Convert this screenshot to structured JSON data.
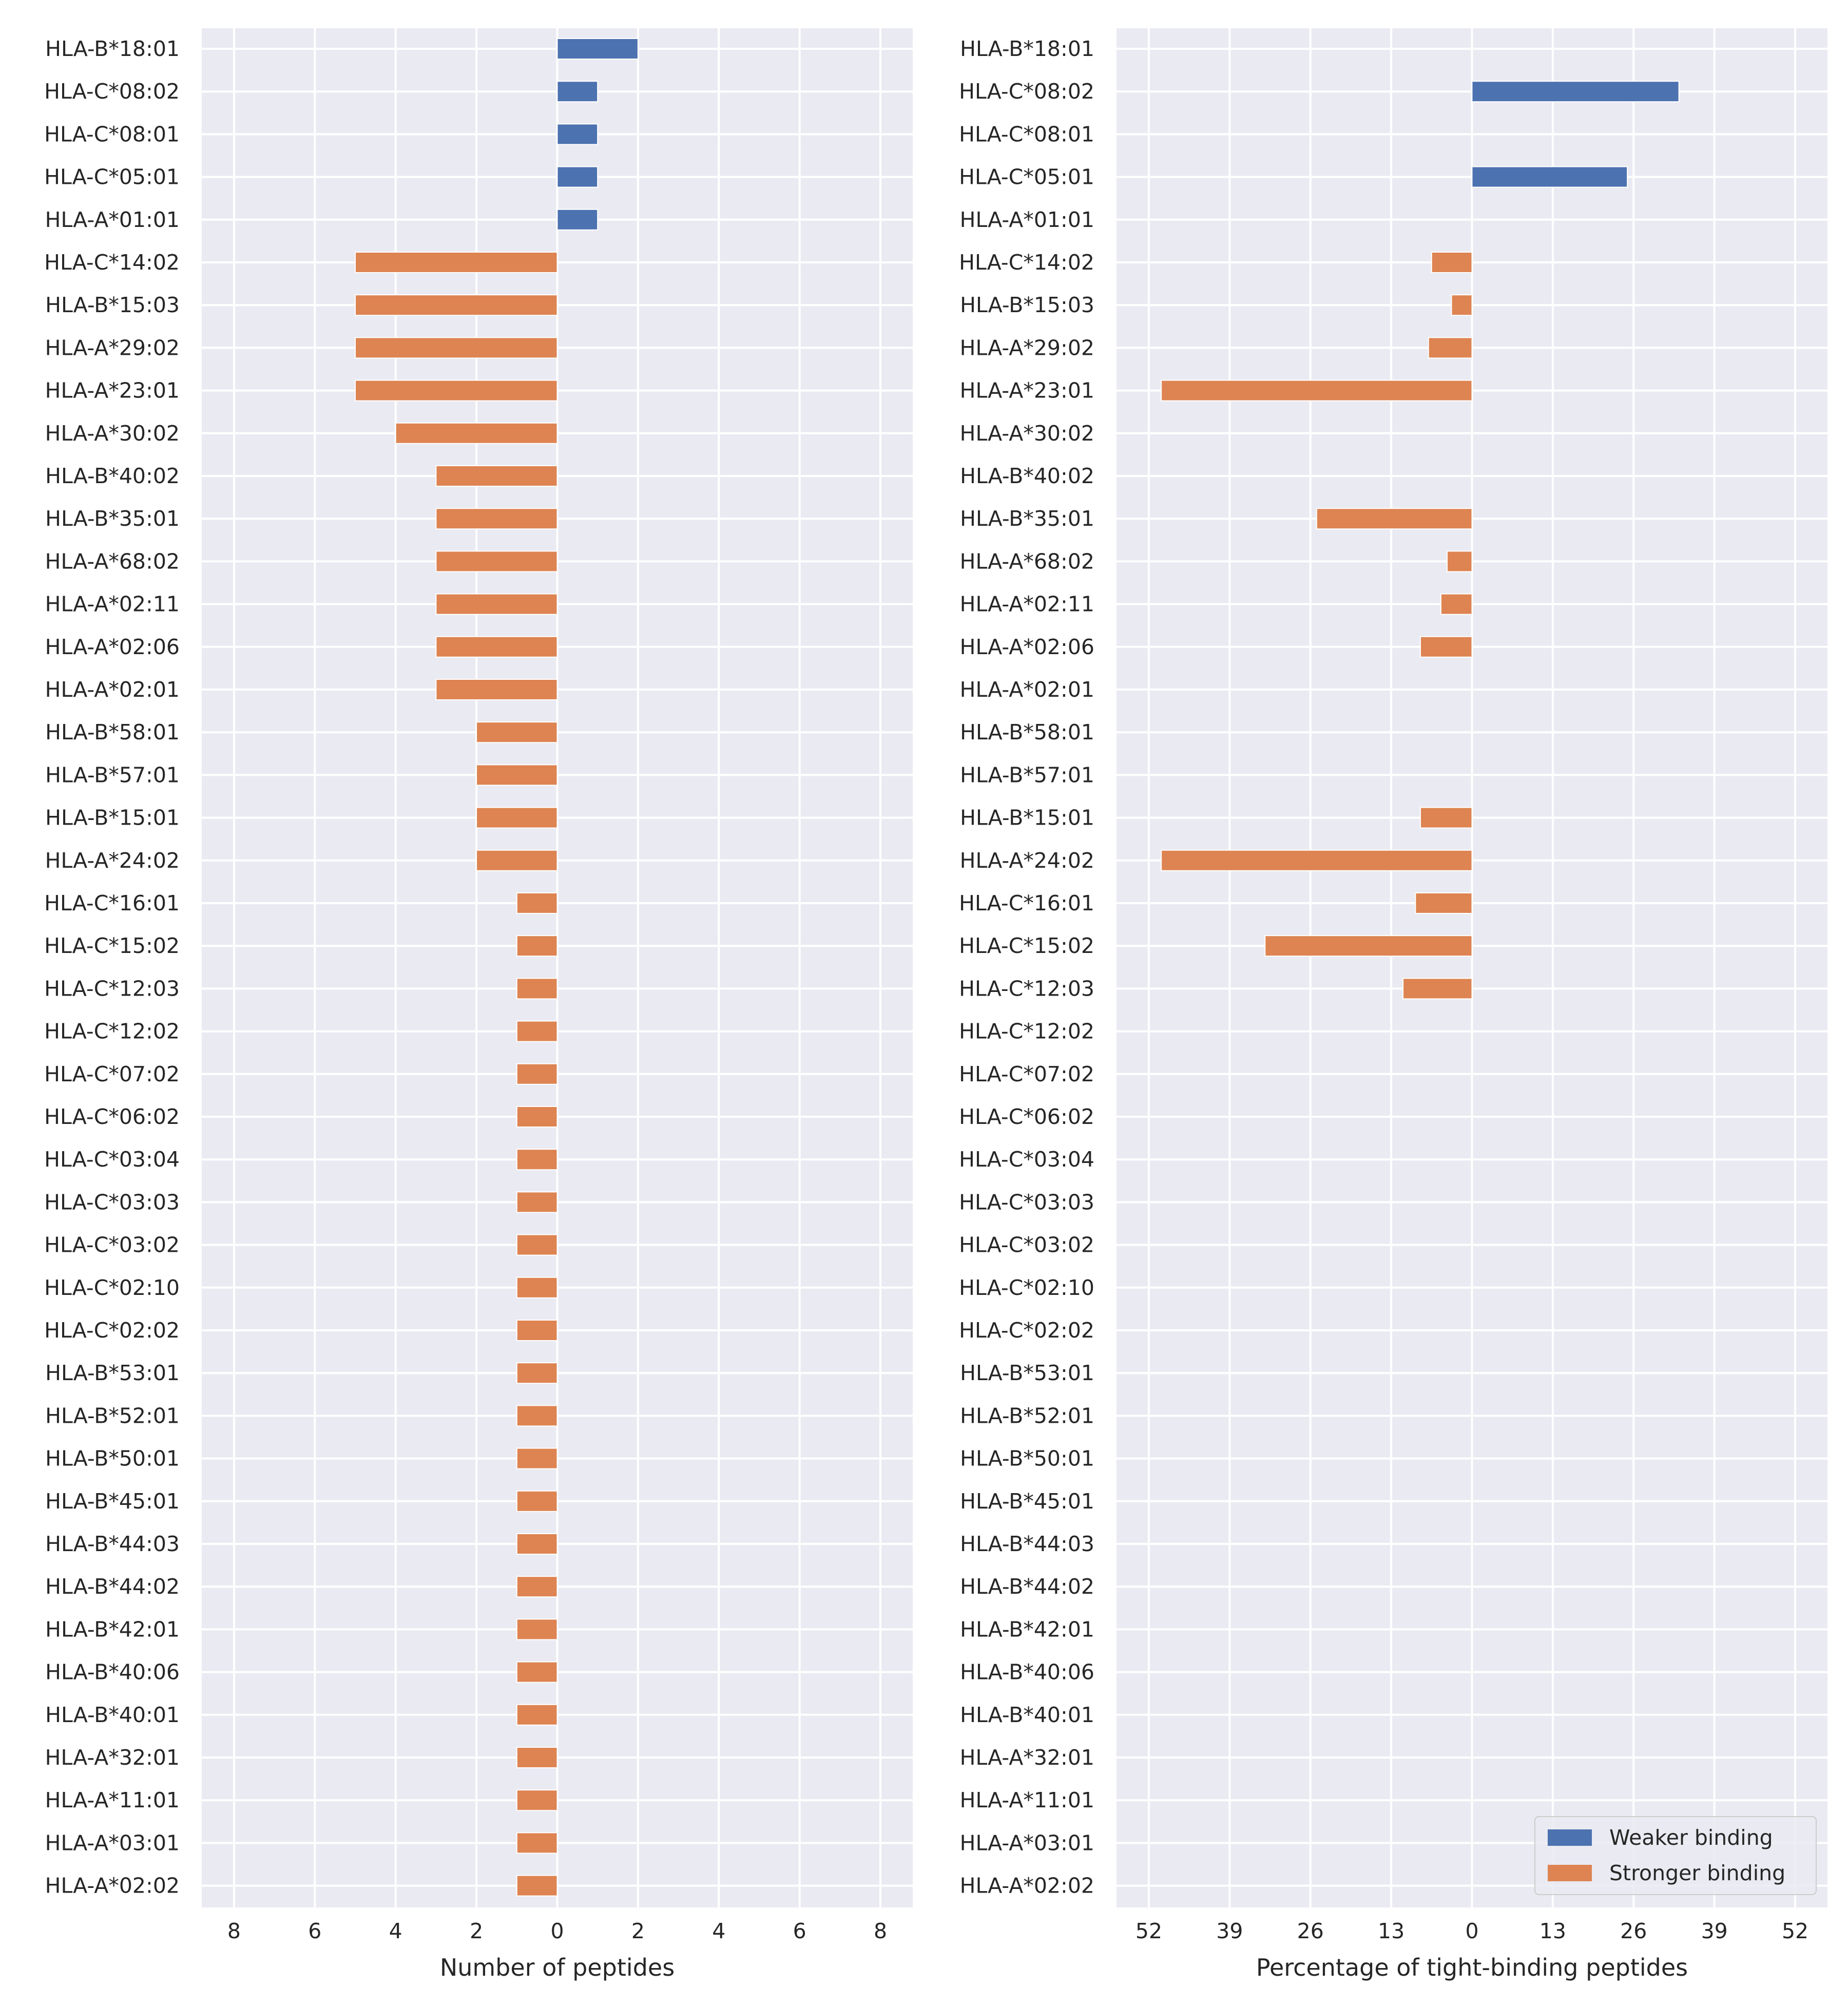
{
  "chart_data": [
    {
      "type": "bar",
      "orientation": "horizontal",
      "categories": [
        "HLA-B*18:01",
        "HLA-C*08:02",
        "HLA-C*08:01",
        "HLA-C*05:01",
        "HLA-A*01:01",
        "HLA-C*14:02",
        "HLA-B*15:03",
        "HLA-A*29:02",
        "HLA-A*23:01",
        "HLA-A*30:02",
        "HLA-B*40:02",
        "HLA-B*35:01",
        "HLA-A*68:02",
        "HLA-A*02:11",
        "HLA-A*02:06",
        "HLA-A*02:01",
        "HLA-B*58:01",
        "HLA-B*57:01",
        "HLA-B*15:01",
        "HLA-A*24:02",
        "HLA-C*16:01",
        "HLA-C*15:02",
        "HLA-C*12:03",
        "HLA-C*12:02",
        "HLA-C*07:02",
        "HLA-C*06:02",
        "HLA-C*03:04",
        "HLA-C*03:03",
        "HLA-C*03:02",
        "HLA-C*02:10",
        "HLA-C*02:02",
        "HLA-B*53:01",
        "HLA-B*52:01",
        "HLA-B*50:01",
        "HLA-B*45:01",
        "HLA-B*44:03",
        "HLA-B*44:02",
        "HLA-B*42:01",
        "HLA-B*40:06",
        "HLA-B*40:01",
        "HLA-A*32:01",
        "HLA-A*11:01",
        "HLA-A*03:01",
        "HLA-A*02:02"
      ],
      "series": [
        {
          "name": "Weaker binding",
          "color": "#4c72b0",
          "direction": "right",
          "values": [
            2,
            1,
            1,
            1,
            1,
            0,
            0,
            0,
            0,
            0,
            0,
            0,
            0,
            0,
            0,
            0,
            0,
            0,
            0,
            0,
            0,
            0,
            0,
            0,
            0,
            0,
            0,
            0,
            0,
            0,
            0,
            0,
            0,
            0,
            0,
            0,
            0,
            0,
            0,
            0,
            0,
            0,
            0,
            0
          ]
        },
        {
          "name": "Stronger binding",
          "color": "#dd8452",
          "direction": "left",
          "values": [
            0,
            0,
            0,
            0,
            0,
            5,
            5,
            5,
            5,
            4,
            3,
            3,
            3,
            3,
            3,
            3,
            2,
            2,
            2,
            2,
            1,
            1,
            1,
            1,
            1,
            1,
            1,
            1,
            1,
            1,
            1,
            1,
            1,
            1,
            1,
            1,
            1,
            1,
            1,
            1,
            1,
            1,
            1,
            1
          ]
        }
      ],
      "xlabel": "Number of peptides",
      "xlim": [
        -8.8,
        8.8
      ],
      "xticks": [
        -8,
        -6,
        -4,
        -2,
        0,
        2,
        4,
        6,
        8
      ],
      "xtick_labels": [
        "8",
        "6",
        "4",
        "2",
        "0",
        "2",
        "4",
        "6",
        "8"
      ],
      "grid": true
    },
    {
      "type": "bar",
      "orientation": "horizontal",
      "categories": [
        "HLA-B*18:01",
        "HLA-C*08:02",
        "HLA-C*08:01",
        "HLA-C*05:01",
        "HLA-A*01:01",
        "HLA-C*14:02",
        "HLA-B*15:03",
        "HLA-A*29:02",
        "HLA-A*23:01",
        "HLA-A*30:02",
        "HLA-B*40:02",
        "HLA-B*35:01",
        "HLA-A*68:02",
        "HLA-A*02:11",
        "HLA-A*02:06",
        "HLA-A*02:01",
        "HLA-B*58:01",
        "HLA-B*57:01",
        "HLA-B*15:01",
        "HLA-A*24:02",
        "HLA-C*16:01",
        "HLA-C*15:02",
        "HLA-C*12:03",
        "HLA-C*12:02",
        "HLA-C*07:02",
        "HLA-C*06:02",
        "HLA-C*03:04",
        "HLA-C*03:03",
        "HLA-C*03:02",
        "HLA-C*02:10",
        "HLA-C*02:02",
        "HLA-B*53:01",
        "HLA-B*52:01",
        "HLA-B*50:01",
        "HLA-B*45:01",
        "HLA-B*44:03",
        "HLA-B*44:02",
        "HLA-B*42:01",
        "HLA-B*40:06",
        "HLA-B*40:01",
        "HLA-A*32:01",
        "HLA-A*11:01",
        "HLA-A*03:01",
        "HLA-A*02:02"
      ],
      "series": [
        {
          "name": "Weaker binding",
          "color": "#4c72b0",
          "direction": "right",
          "values": [
            0,
            33.3,
            0,
            25,
            0,
            0,
            0,
            0,
            0,
            0,
            0,
            0,
            0,
            0,
            0,
            0,
            0,
            0,
            0,
            0,
            0,
            0,
            0,
            0,
            0,
            0,
            0,
            0,
            0,
            0,
            0,
            0,
            0,
            0,
            0,
            0,
            0,
            0,
            0,
            0,
            0,
            0,
            0,
            0
          ]
        },
        {
          "name": "Stronger binding",
          "color": "#dd8452",
          "direction": "left",
          "values": [
            0,
            0,
            0,
            0,
            0,
            6.5,
            3.3,
            7,
            50,
            0,
            0,
            25,
            4,
            5,
            8.3,
            0,
            0,
            0,
            8.3,
            50,
            9.1,
            33.3,
            11.1,
            0,
            0,
            0,
            0,
            0,
            0,
            0,
            0,
            0,
            0,
            0,
            0,
            0,
            0,
            0,
            0,
            0,
            0,
            0,
            0,
            0
          ]
        }
      ],
      "xlabel": "Percentage of tight-binding peptides",
      "xlim": [
        -57.2,
        57.2
      ],
      "xticks": [
        -52,
        -39,
        -26,
        -13,
        0,
        13,
        26,
        39,
        52
      ],
      "xtick_labels": [
        "52",
        "39",
        "26",
        "13",
        "0",
        "13",
        "26",
        "39",
        "52"
      ],
      "grid": true,
      "legend": {
        "placement": "lower-right",
        "entries": [
          "Weaker binding",
          "Stronger binding"
        ]
      }
    }
  ],
  "style": {
    "axes_bg": "#eaeaf2",
    "grid": "#ffffff",
    "text": "#262626"
  }
}
